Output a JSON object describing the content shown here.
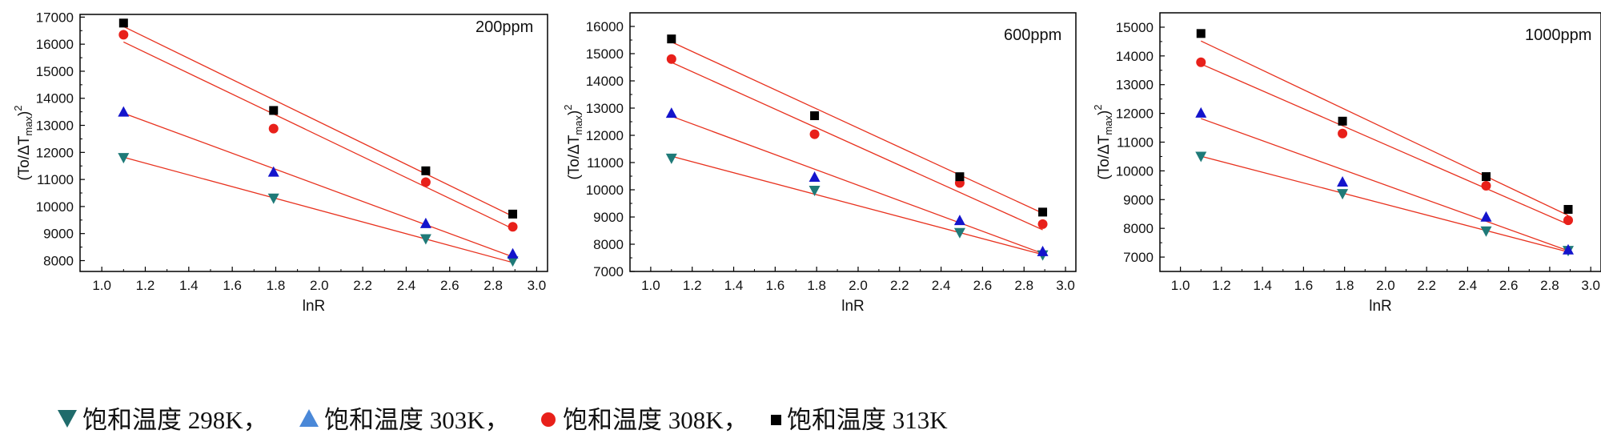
{
  "legend": {
    "items": [
      {
        "label": "饱和温度 298K，",
        "marker": "triangle-down",
        "color": "#1f6b6b"
      },
      {
        "label": "饱和温度 303K，",
        "marker": "triangle-up",
        "color": "#4a88d8"
      },
      {
        "label": "饱和温度 308K，",
        "marker": "circle",
        "color": "#e8201a"
      },
      {
        "label": "饱和温度 313K",
        "marker": "square",
        "color": "#000000"
      }
    ]
  },
  "colors": {
    "fit_line": "#e8321f",
    "s298": "#1f7a78",
    "s303": "#1414cc",
    "s308": "#e8201a",
    "s313": "#000000"
  },
  "chart_data": [
    {
      "type": "scatter",
      "label": "200ppm",
      "xlabel": "lnR",
      "ylabel": "(To/ΔTmax)2",
      "xlim": [
        0.9,
        3.05
      ],
      "ylim": [
        7600,
        17100
      ],
      "xticks": [
        1.0,
        1.2,
        1.4,
        1.6,
        1.8,
        2.0,
        2.2,
        2.4,
        2.6,
        2.8,
        3.0
      ],
      "yticks": [
        8000,
        9000,
        10000,
        11000,
        12000,
        13000,
        14000,
        15000,
        16000,
        17000
      ],
      "x": [
        1.1,
        1.79,
        2.49,
        2.89
      ],
      "series": [
        {
          "key": "s298",
          "marker": "triangle-down",
          "values": [
            11800,
            10300,
            8800,
            7980
          ],
          "fit": [
            11820,
            7930
          ]
        },
        {
          "key": "s303",
          "marker": "triangle-up",
          "values": [
            13500,
            11280,
            9380,
            8260
          ],
          "fit": [
            13450,
            8140
          ]
        },
        {
          "key": "s308",
          "marker": "circle",
          "values": [
            16350,
            12880,
            10900,
            9250
          ],
          "fit": [
            16080,
            9180
          ]
        },
        {
          "key": "s313",
          "marker": "square",
          "values": [
            16780,
            13550,
            11320,
            9720
          ],
          "fit": [
            16650,
            9640
          ]
        }
      ]
    },
    {
      "type": "scatter",
      "label": "600ppm",
      "xlabel": "lnR",
      "ylabel": "(To/ΔTmax)2",
      "xlim": [
        0.9,
        3.05
      ],
      "ylim": [
        7000,
        16500
      ],
      "xticks": [
        1.0,
        1.2,
        1.4,
        1.6,
        1.8,
        2.0,
        2.2,
        2.4,
        2.6,
        2.8,
        3.0
      ],
      "yticks": [
        7000,
        8000,
        9000,
        10000,
        11000,
        12000,
        13000,
        14000,
        15000,
        16000
      ],
      "x": [
        1.1,
        1.79,
        2.49,
        2.89
      ],
      "series": [
        {
          "key": "s298",
          "marker": "triangle-down",
          "values": [
            11150,
            9970,
            8420,
            7600
          ],
          "fit": [
            11230,
            7620
          ]
        },
        {
          "key": "s303",
          "marker": "triangle-up",
          "values": [
            12820,
            10470,
            8880,
            7740
          ],
          "fit": [
            12700,
            7660
          ]
        },
        {
          "key": "s308",
          "marker": "circle",
          "values": [
            14800,
            12040,
            10250,
            8740
          ],
          "fit": [
            14680,
            8530
          ]
        },
        {
          "key": "s313",
          "marker": "square",
          "values": [
            15540,
            12720,
            10480,
            9180
          ],
          "fit": [
            15430,
            9140
          ]
        }
      ]
    },
    {
      "type": "scatter",
      "label": "1000ppm",
      "xlabel": "lnR",
      "ylabel": "(To/ΔTmax)2",
      "xlim": [
        0.9,
        3.05
      ],
      "ylim": [
        6500,
        15500
      ],
      "xticks": [
        1.0,
        1.2,
        1.4,
        1.6,
        1.8,
        2.0,
        2.2,
        2.4,
        2.6,
        2.8,
        3.0
      ],
      "yticks": [
        7000,
        8000,
        9000,
        10000,
        11000,
        12000,
        13000,
        14000,
        15000
      ],
      "x": [
        1.1,
        1.79,
        2.49,
        2.89
      ],
      "series": [
        {
          "key": "s298",
          "marker": "triangle-down",
          "values": [
            10500,
            9200,
            7900,
            7220
          ],
          "fit": [
            10510,
            7180
          ]
        },
        {
          "key": "s303",
          "marker": "triangle-up",
          "values": [
            12020,
            9620,
            8400,
            7260
          ],
          "fit": [
            11820,
            7220
          ]
        },
        {
          "key": "s308",
          "marker": "circle",
          "values": [
            13780,
            11300,
            9480,
            8280
          ],
          "fit": [
            13720,
            8140
          ]
        },
        {
          "key": "s313",
          "marker": "square",
          "values": [
            14780,
            11730,
            9800,
            8660
          ],
          "fit": [
            14520,
            8450
          ]
        }
      ]
    }
  ]
}
